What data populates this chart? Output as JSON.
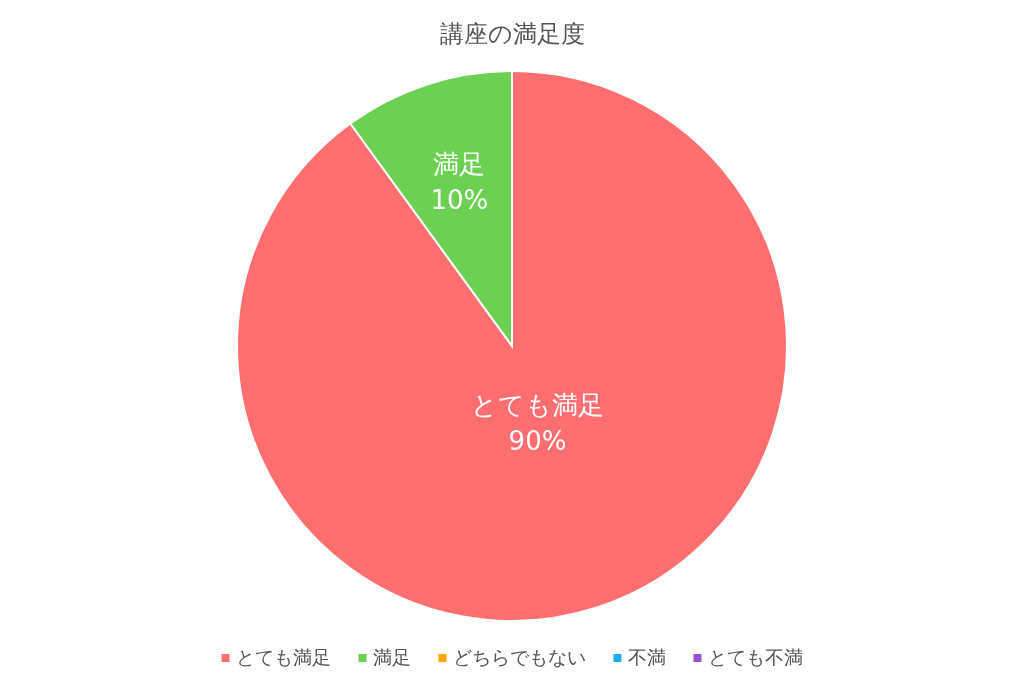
{
  "chart_data": {
    "type": "pie",
    "title": "講座の満足度",
    "categories": [
      "とても満足",
      "満足",
      "どちらでもない",
      "不満",
      "とても不満"
    ],
    "values": [
      90,
      10,
      0,
      0,
      0
    ],
    "colors": [
      "#ff6e70",
      "#6cd152",
      "#ffa600",
      "#1ab2ea",
      "#9b4fd8"
    ],
    "value_labels": [
      "90%",
      "10%",
      null,
      null,
      null
    ],
    "legend": "bottom"
  }
}
